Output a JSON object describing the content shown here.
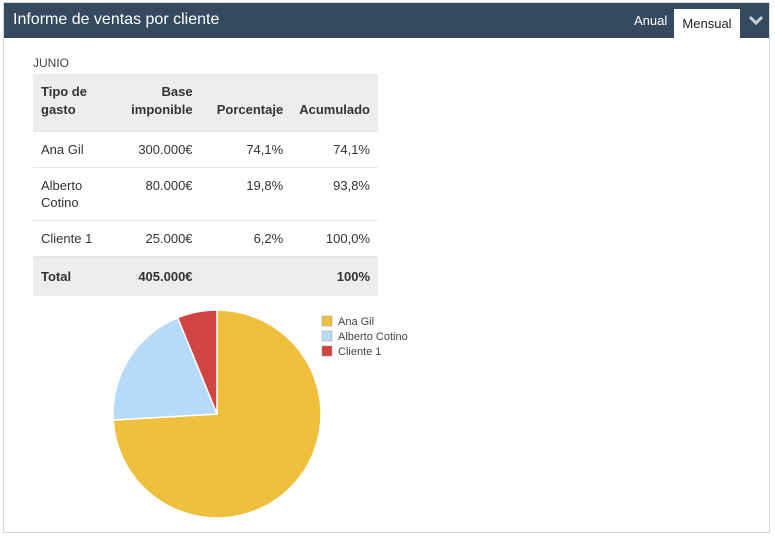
{
  "header": {
    "title": "Informe de ventas por cliente",
    "tabs": [
      {
        "label": "Anual",
        "active": false
      },
      {
        "label": "Mensual",
        "active": true
      }
    ],
    "collapse_icon": "chevron-down-icon"
  },
  "report": {
    "month": "JUNIO",
    "columns": {
      "c1": "Tipo de gasto",
      "c2": "Base imponible",
      "c3": "Porcentaje",
      "c4": "Acumulado"
    },
    "rows": [
      {
        "name": "Ana Gil",
        "base": "300.000€",
        "pct": "74,1%",
        "acum": "74,1%"
      },
      {
        "name": "Alberto Cotino",
        "base": "80.000€",
        "pct": "19,8%",
        "acum": "93,8%"
      },
      {
        "name": "Cliente 1",
        "base": "25.000€",
        "pct": "6,2%",
        "acum": "100,0%"
      }
    ],
    "total": {
      "label": "Total",
      "base": "405.000€",
      "acum": "100%"
    }
  },
  "chart_data": {
    "type": "pie",
    "categories": [
      "Ana Gil",
      "Alberto Cotino",
      "Cliente 1"
    ],
    "values": [
      300000,
      80000,
      25000
    ],
    "colors": [
      "#eec03e",
      "#b5dbf8",
      "#d14444"
    ],
    "title": "",
    "legend": "top-right"
  },
  "colors": {
    "header_bg": "#364a5f",
    "header_text": "#ffffff",
    "table_header_bg": "#ededed"
  }
}
